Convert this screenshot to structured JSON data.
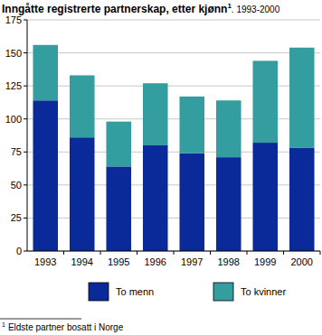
{
  "chart_data": {
    "type": "bar",
    "stacked": true,
    "title": "Inngåtte registrerte partnerskap, etter kjønn",
    "title_footnote": "1",
    "title_suffix": ". 1993-2000",
    "footnote": "Eldste partner bosatt i Norge",
    "categories": [
      "1993",
      "1994",
      "1995",
      "1996",
      "1997",
      "1998",
      "1999",
      "2000"
    ],
    "series": [
      {
        "name": "To menn",
        "color": "#0b2a9a",
        "values": [
          114,
          86,
          64,
          80,
          74,
          71,
          82,
          78
        ]
      },
      {
        "name": "To kvinner",
        "color": "#339d9f",
        "values": [
          42,
          47,
          34,
          47,
          43,
          43,
          62,
          76
        ]
      }
    ],
    "ylim": [
      0,
      175
    ],
    "yticks": [
      0,
      25,
      50,
      75,
      100,
      125,
      150,
      175
    ],
    "grid": true,
    "legend": "bottom"
  }
}
